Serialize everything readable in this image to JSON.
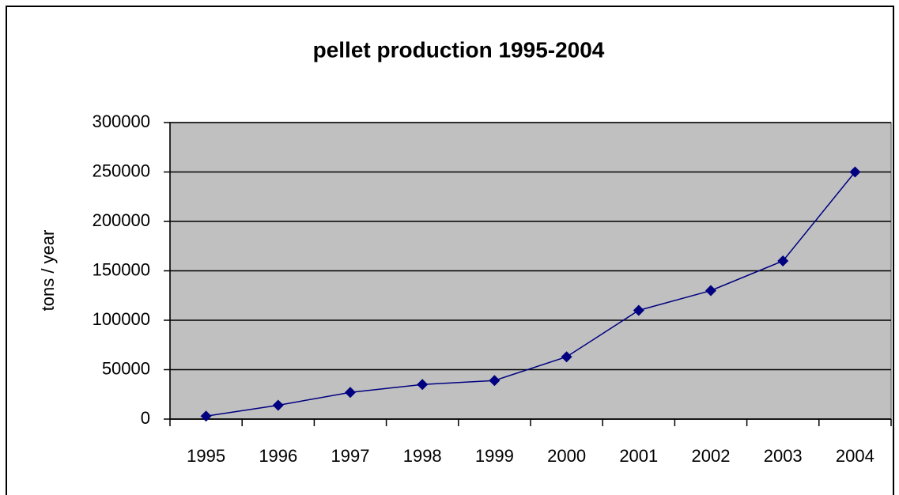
{
  "chart_data": {
    "type": "line",
    "title": "pellet production 1995-2004",
    "y_label": "tons / year",
    "categories": [
      "1995",
      "1996",
      "1997",
      "1998",
      "1999",
      "2000",
      "2001",
      "2002",
      "2003",
      "2004"
    ],
    "values": [
      3000,
      14000,
      27000,
      35000,
      39000,
      63000,
      110000,
      130000,
      160000,
      250000
    ],
    "color": "#000080",
    "plot_background": "#c0c0c0",
    "ylim": [
      0,
      300000
    ],
    "yticks": [
      0,
      50000,
      100000,
      150000,
      200000,
      250000,
      300000
    ],
    "grid": true
  }
}
